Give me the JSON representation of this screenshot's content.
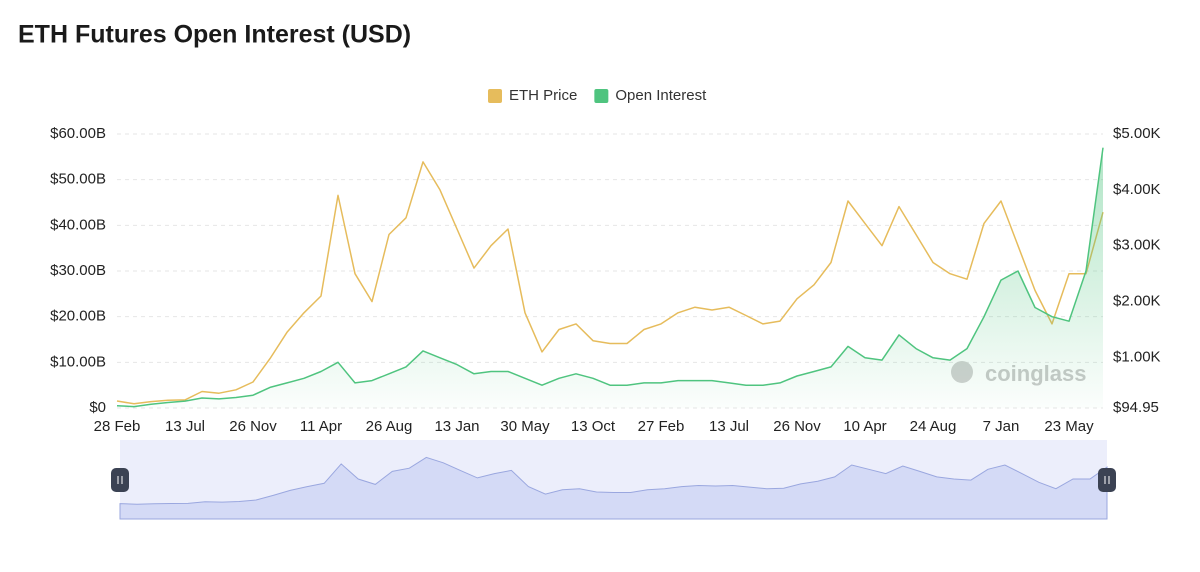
{
  "chart_data": {
    "type": "line",
    "title": "ETH Futures Open Interest (USD)",
    "watermark": "coinglass",
    "categories": [
      "28 Feb",
      null,
      null,
      null,
      "13 Jul",
      null,
      null,
      null,
      "26 Nov",
      null,
      null,
      null,
      "11 Apr",
      null,
      null,
      null,
      "26 Aug",
      null,
      null,
      null,
      "13 Jan",
      null,
      null,
      null,
      "30 May",
      null,
      null,
      null,
      "13 Oct",
      null,
      null,
      null,
      "27 Feb",
      null,
      null,
      null,
      "13 Jul",
      null,
      null,
      null,
      "26 Nov",
      null,
      null,
      null,
      "10 Apr",
      null,
      null,
      null,
      "24 Aug",
      null,
      null,
      null,
      "7 Jan",
      null,
      null,
      null,
      "23 May",
      null,
      null
    ],
    "series": [
      {
        "name": "ETH Price",
        "color": "#e6bc5c",
        "axis": "y2",
        "values": [
          220,
          170,
          210,
          235,
          240,
          390,
          360,
          420,
          560,
          980,
          1450,
          1800,
          2100,
          3900,
          2500,
          2000,
          3200,
          3500,
          4500,
          4000,
          3300,
          2600,
          3000,
          3300,
          1800,
          1100,
          1500,
          1600,
          1300,
          1250,
          1250,
          1500,
          1600,
          1800,
          1900,
          1850,
          1900,
          1750,
          1600,
          1650,
          2050,
          2300,
          2700,
          3800,
          3400,
          3000,
          3700,
          3200,
          2700,
          2500,
          2400,
          3400,
          3800,
          3000,
          2200,
          1600,
          2500,
          2500,
          3600
        ]
      },
      {
        "name": "Open Interest",
        "color": "#4fc47f",
        "values": [
          0.5,
          0.3,
          0.8,
          1.2,
          1.5,
          2.2,
          2.0,
          2.3,
          2.8,
          4.5,
          5.5,
          6.5,
          8.0,
          10.0,
          5.5,
          6.0,
          7.5,
          9.0,
          12.5,
          11.0,
          9.5,
          7.5,
          8.0,
          8.0,
          6.5,
          5.0,
          6.5,
          7.5,
          6.5,
          5.0,
          5.0,
          5.5,
          5.5,
          6.0,
          6.0,
          6.0,
          5.5,
          5.0,
          5.0,
          5.5,
          7.0,
          8.0,
          9.0,
          13.5,
          11.0,
          10.5,
          16.0,
          13.0,
          11.0,
          10.5,
          13.0,
          20.0,
          28.0,
          30.0,
          22.0,
          20.0,
          19.0,
          30.0,
          57.0
        ]
      }
    ],
    "ylim": [
      0,
      60
    ],
    "yticks": [
      {
        "value": 0,
        "label": "$0"
      },
      {
        "value": 10,
        "label": "$10.00B"
      },
      {
        "value": 20,
        "label": "$20.00B"
      },
      {
        "value": 30,
        "label": "$30.00B"
      },
      {
        "value": 40,
        "label": "$40.00B"
      },
      {
        "value": 50,
        "label": "$50.00B"
      },
      {
        "value": 60,
        "label": "$60.00B"
      }
    ],
    "y2lim": [
      94.95,
      5000
    ],
    "y2ticks": [
      {
        "value": 94.95,
        "label": "$94.95"
      },
      {
        "value": 1000,
        "label": "$1.00K"
      },
      {
        "value": 2000,
        "label": "$2.00K"
      },
      {
        "value": 3000,
        "label": "$3.00K"
      },
      {
        "value": 4000,
        "label": "$4.00K"
      },
      {
        "value": 5000,
        "label": "$5.00K"
      }
    ],
    "grid": true,
    "legend": "top"
  }
}
